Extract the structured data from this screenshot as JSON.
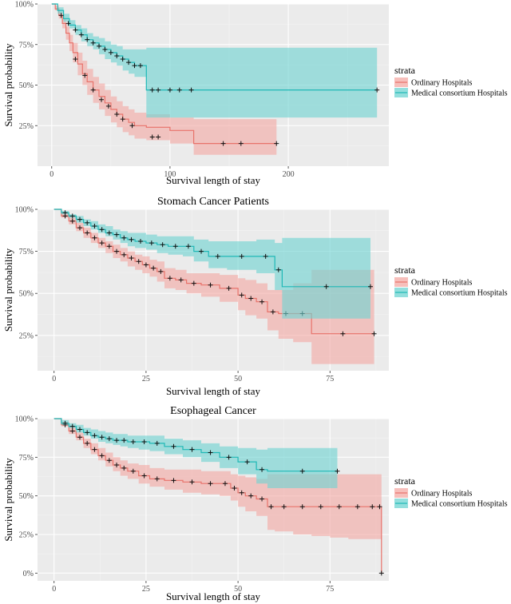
{
  "colors": {
    "ordinary_line": "#e8736b",
    "ordinary_band": "#f4a9a4",
    "consortium_line": "#1fb8b6",
    "consortium_band": "#6fd4d2",
    "censor_mark": "#111111"
  },
  "chart_data": [
    {
      "type": "line",
      "title": "",
      "xlabel": "Survival length of stay",
      "ylabel": "Survival probability",
      "xlim": [
        -12,
        285
      ],
      "ylim": [
        0.0,
        1.0
      ],
      "x_ticks": [
        0,
        100,
        200
      ],
      "x_tick_labels": [
        "0",
        "100",
        "200"
      ],
      "y_ticks": [
        0.25,
        0.5,
        0.75,
        1.0
      ],
      "y_tick_labels": [
        "25%",
        "50%",
        "75%",
        "100%"
      ],
      "legend": {
        "title": "strata",
        "position": "right",
        "labels": [
          "Ordinary Hospitals",
          "Medical consortium Hospitals"
        ]
      },
      "series": [
        {
          "name": "Ordinary Hospitals",
          "x": [
            0,
            3,
            6,
            9,
            12,
            15,
            18,
            22,
            26,
            30,
            35,
            40,
            45,
            50,
            55,
            60,
            65,
            70,
            80,
            100,
            120,
            190
          ],
          "y": [
            1.0,
            0.97,
            0.93,
            0.88,
            0.82,
            0.76,
            0.7,
            0.63,
            0.57,
            0.52,
            0.47,
            0.43,
            0.39,
            0.35,
            0.32,
            0.29,
            0.27,
            0.25,
            0.24,
            0.22,
            0.14,
            0.14
          ],
          "lower": [
            1.0,
            0.96,
            0.91,
            0.85,
            0.78,
            0.71,
            0.64,
            0.56,
            0.5,
            0.44,
            0.39,
            0.35,
            0.31,
            0.27,
            0.24,
            0.21,
            0.19,
            0.17,
            0.16,
            0.14,
            0.07,
            0.07
          ],
          "upper": [
            1.0,
            0.99,
            0.95,
            0.91,
            0.86,
            0.81,
            0.76,
            0.7,
            0.65,
            0.6,
            0.55,
            0.51,
            0.47,
            0.43,
            0.4,
            0.37,
            0.35,
            0.33,
            0.32,
            0.3,
            0.29,
            0.29
          ],
          "censor_x": [
            20,
            28,
            35,
            42,
            48,
            55,
            60,
            68,
            85,
            90,
            145,
            160,
            190
          ],
          "censor_y": [
            0.66,
            0.56,
            0.47,
            0.41,
            0.37,
            0.32,
            0.29,
            0.25,
            0.18,
            0.18,
            0.14,
            0.14,
            0.14
          ]
        },
        {
          "name": "Medical consortium Hospitals",
          "x": [
            0,
            5,
            10,
            15,
            20,
            25,
            30,
            35,
            40,
            45,
            50,
            55,
            60,
            65,
            70,
            78,
            80,
            275
          ],
          "y": [
            1.0,
            0.96,
            0.91,
            0.87,
            0.84,
            0.81,
            0.78,
            0.76,
            0.74,
            0.72,
            0.7,
            0.68,
            0.66,
            0.64,
            0.62,
            0.62,
            0.47,
            0.47
          ],
          "lower": [
            1.0,
            0.94,
            0.89,
            0.85,
            0.81,
            0.77,
            0.74,
            0.72,
            0.69,
            0.66,
            0.64,
            0.62,
            0.59,
            0.57,
            0.55,
            0.55,
            0.3,
            0.3
          ],
          "upper": [
            1.0,
            0.98,
            0.94,
            0.9,
            0.87,
            0.85,
            0.82,
            0.8,
            0.79,
            0.77,
            0.75,
            0.74,
            0.72,
            0.72,
            0.72,
            0.72,
            0.73,
            0.73
          ],
          "censor_x": [
            8,
            14,
            20,
            25,
            30,
            35,
            40,
            45,
            50,
            55,
            60,
            65,
            70,
            75,
            85,
            90,
            100,
            108,
            118,
            275
          ],
          "censor_y": [
            0.93,
            0.88,
            0.84,
            0.81,
            0.78,
            0.76,
            0.74,
            0.72,
            0.7,
            0.68,
            0.66,
            0.64,
            0.62,
            0.62,
            0.47,
            0.47,
            0.47,
            0.47,
            0.47,
            0.47
          ]
        }
      ]
    },
    {
      "type": "line",
      "title": "Stomach Cancer Patients",
      "xlabel": "Survival length of stay",
      "ylabel": "Survival probability",
      "xlim": [
        -4.5,
        91
      ],
      "ylim": [
        0.04,
        1.0
      ],
      "x_ticks": [
        0,
        25,
        50,
        75
      ],
      "x_tick_labels": [
        "0",
        "25",
        "50",
        "75"
      ],
      "y_ticks": [
        0.25,
        0.5,
        0.75,
        1.0
      ],
      "y_tick_labels": [
        "25%",
        "50%",
        "75%",
        "100%"
      ],
      "legend": {
        "title": "strata",
        "position": "right",
        "labels": [
          "Ordinary Hospitals",
          "Medical consortium Hospitals"
        ]
      },
      "series": [
        {
          "name": "Ordinary Hospitals",
          "x": [
            0,
            2,
            4,
            6,
            8,
            10,
            12,
            14,
            16,
            18,
            20,
            22,
            24,
            26,
            28,
            30,
            33,
            36,
            40,
            45,
            50,
            52,
            55,
            58,
            61,
            65,
            70,
            87
          ],
          "y": [
            1.0,
            0.96,
            0.93,
            0.89,
            0.86,
            0.83,
            0.8,
            0.78,
            0.75,
            0.73,
            0.71,
            0.69,
            0.67,
            0.65,
            0.63,
            0.59,
            0.58,
            0.56,
            0.55,
            0.53,
            0.49,
            0.47,
            0.45,
            0.39,
            0.38,
            0.38,
            0.26,
            0.26
          ],
          "lower": [
            1.0,
            0.95,
            0.91,
            0.87,
            0.83,
            0.8,
            0.77,
            0.74,
            0.71,
            0.69,
            0.66,
            0.64,
            0.62,
            0.6,
            0.57,
            0.53,
            0.52,
            0.5,
            0.48,
            0.45,
            0.4,
            0.37,
            0.35,
            0.28,
            0.23,
            0.21,
            0.08,
            0.08
          ],
          "upper": [
            1.0,
            0.98,
            0.96,
            0.92,
            0.89,
            0.86,
            0.83,
            0.81,
            0.79,
            0.77,
            0.75,
            0.73,
            0.72,
            0.7,
            0.69,
            0.65,
            0.64,
            0.62,
            0.62,
            0.61,
            0.59,
            0.58,
            0.56,
            0.52,
            0.52,
            0.56,
            0.64,
            0.64
          ]
        },
        {
          "name": "Medical consortium Hospitals",
          "x": [
            0,
            2,
            4,
            6,
            8,
            10,
            12,
            14,
            16,
            18,
            20,
            22,
            25,
            28,
            31,
            35,
            38,
            42,
            47,
            55,
            60,
            62,
            86
          ],
          "y": [
            1.0,
            0.98,
            0.96,
            0.94,
            0.92,
            0.9,
            0.88,
            0.86,
            0.85,
            0.83,
            0.82,
            0.81,
            0.8,
            0.79,
            0.78,
            0.78,
            0.75,
            0.72,
            0.72,
            0.72,
            0.64,
            0.54,
            0.54
          ],
          "lower": [
            1.0,
            0.97,
            0.95,
            0.92,
            0.9,
            0.88,
            0.86,
            0.84,
            0.82,
            0.8,
            0.78,
            0.77,
            0.76,
            0.74,
            0.73,
            0.72,
            0.69,
            0.65,
            0.64,
            0.62,
            0.52,
            0.35,
            0.35
          ],
          "upper": [
            1.0,
            0.99,
            0.97,
            0.96,
            0.94,
            0.93,
            0.91,
            0.9,
            0.88,
            0.87,
            0.86,
            0.86,
            0.85,
            0.84,
            0.84,
            0.84,
            0.82,
            0.81,
            0.81,
            0.82,
            0.8,
            0.83,
            0.83
          ]
        }
      ]
    },
    {
      "type": "line",
      "title": "Esophageal Cancer",
      "xlabel": "Survival length of stay",
      "ylabel": "Survival probability",
      "xlim": [
        -4.5,
        91
      ],
      "ylim": [
        -0.05,
        1.0
      ],
      "x_ticks": [
        0,
        25,
        50,
        75
      ],
      "x_tick_labels": [
        "0",
        "25",
        "50",
        "75"
      ],
      "y_ticks": [
        0.0,
        0.25,
        0.5,
        0.75,
        1.0
      ],
      "y_tick_labels": [
        "0%",
        "25%",
        "50%",
        "75%",
        "100%"
      ],
      "legend": {
        "title": "strata",
        "position": "right",
        "labels": [
          "Ordinary Hospitals",
          "Medical consortium Hospitals"
        ]
      },
      "series": [
        {
          "name": "Ordinary Hospitals",
          "x": [
            0,
            2,
            4,
            6,
            8,
            10,
            12,
            14,
            16,
            18,
            20,
            23,
            26,
            30,
            35,
            40,
            45,
            48,
            50,
            52,
            55,
            58,
            60,
            65,
            70,
            75,
            80,
            85,
            88,
            89
          ],
          "y": [
            1.0,
            0.96,
            0.92,
            0.88,
            0.84,
            0.8,
            0.76,
            0.73,
            0.7,
            0.68,
            0.66,
            0.63,
            0.61,
            0.6,
            0.59,
            0.58,
            0.58,
            0.55,
            0.52,
            0.5,
            0.48,
            0.43,
            0.43,
            0.43,
            0.43,
            0.43,
            0.43,
            0.43,
            0.43,
            0.0
          ],
          "lower": [
            1.0,
            0.95,
            0.9,
            0.86,
            0.81,
            0.77,
            0.73,
            0.69,
            0.66,
            0.63,
            0.61,
            0.58,
            0.56,
            0.54,
            0.52,
            0.51,
            0.5,
            0.47,
            0.43,
            0.4,
            0.37,
            0.28,
            0.27,
            0.25,
            0.24,
            0.23,
            0.22,
            0.22,
            0.22,
            0.0
          ],
          "upper": [
            1.0,
            0.98,
            0.95,
            0.91,
            0.87,
            0.84,
            0.81,
            0.78,
            0.75,
            0.73,
            0.71,
            0.7,
            0.68,
            0.67,
            0.67,
            0.66,
            0.66,
            0.64,
            0.63,
            0.62,
            0.61,
            0.64,
            0.64,
            0.64,
            0.64,
            0.64,
            0.64,
            0.64,
            0.64,
            0.64
          ]
        },
        {
          "name": "Medical consortium Hospitals",
          "x": [
            0,
            2,
            4,
            6,
            8,
            10,
            12,
            14,
            16,
            18,
            20,
            23,
            26,
            30,
            35,
            40,
            45,
            50,
            55,
            58,
            77
          ],
          "y": [
            1.0,
            0.97,
            0.95,
            0.93,
            0.91,
            0.89,
            0.88,
            0.87,
            0.86,
            0.86,
            0.85,
            0.85,
            0.84,
            0.82,
            0.8,
            0.78,
            0.75,
            0.72,
            0.67,
            0.66,
            0.66
          ],
          "lower": [
            1.0,
            0.96,
            0.94,
            0.91,
            0.89,
            0.87,
            0.85,
            0.84,
            0.83,
            0.82,
            0.81,
            0.8,
            0.79,
            0.77,
            0.75,
            0.72,
            0.68,
            0.64,
            0.58,
            0.55,
            0.55
          ],
          "upper": [
            1.0,
            0.99,
            0.97,
            0.96,
            0.94,
            0.93,
            0.92,
            0.91,
            0.9,
            0.9,
            0.89,
            0.89,
            0.89,
            0.87,
            0.86,
            0.84,
            0.82,
            0.81,
            0.8,
            0.81,
            0.81
          ]
        }
      ]
    }
  ]
}
